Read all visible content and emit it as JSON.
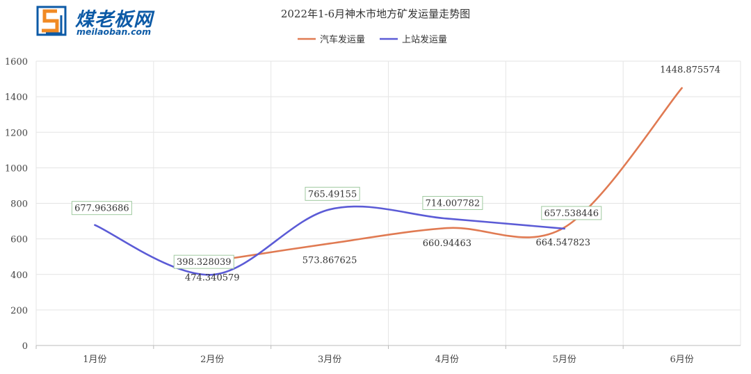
{
  "logo": {
    "name_cn": "煤老板网",
    "domain": "meilaoban.com"
  },
  "chart_data": {
    "type": "line",
    "title": "2022年1-6月神木市地方矿发运量走势图",
    "categories": [
      "1月份",
      "2月份",
      "3月份",
      "4月份",
      "5月份",
      "6月份"
    ],
    "series": [
      {
        "name": "汽车发运量",
        "color": "#e07a52",
        "values": [
          null,
          474.340579,
          573.867625,
          660.94463,
          664.547823,
          1448.875574
        ],
        "labels": [
          "",
          "474.340579",
          "573.867625",
          "660.94463",
          "664.547823",
          "1448.875574"
        ]
      },
      {
        "name": "上站发运量",
        "color": "#5b5bd6",
        "values": [
          677.963686,
          398.328039,
          765.49155,
          714.007782,
          657.538446,
          null
        ],
        "labels": [
          "677.963686",
          "398.328039",
          "765.49155",
          "714.007782",
          "657.538446",
          ""
        ]
      }
    ],
    "ylim": [
      0,
      1600
    ],
    "yticks": [
      "0",
      "200",
      "400",
      "600",
      "800",
      "1000",
      "1200",
      "1400",
      "1600"
    ],
    "grid": true,
    "legend": "top-center",
    "xlabel": "",
    "ylabel": ""
  }
}
